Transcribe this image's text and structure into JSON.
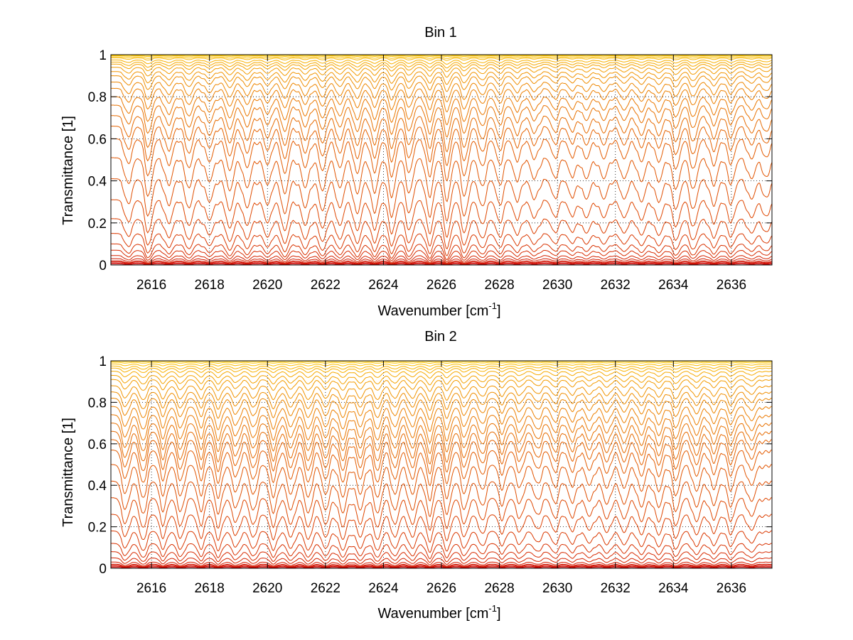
{
  "chart_data": [
    {
      "type": "line",
      "title": "Bin 1",
      "xlabel": "Wavenumber [cm",
      "xlabel_sup": "-1",
      "xlabel_end": "]",
      "ylabel": "Transmittance [1]",
      "xlim": [
        2614.6,
        2637.4
      ],
      "ylim": [
        0,
        1
      ],
      "xticks": [
        2616,
        2618,
        2620,
        2622,
        2624,
        2626,
        2628,
        2630,
        2632,
        2634,
        2636
      ],
      "xtick_labels": [
        "2616",
        "2618",
        "2620",
        "2622",
        "2624",
        "2626",
        "2628",
        "2630",
        "2632",
        "2634",
        "2636"
      ],
      "yticks": [
        0,
        0.2,
        0.4,
        0.6,
        0.8,
        1
      ],
      "ytick_labels": [
        "0",
        "0.2",
        "0.4",
        "0.6",
        "0.8",
        "1"
      ],
      "grid": true,
      "series_count": 30,
      "baseline_levels": [
        0.005,
        0.01,
        0.015,
        0.02,
        0.03,
        0.045,
        0.07,
        0.1,
        0.15,
        0.22,
        0.31,
        0.41,
        0.51,
        0.6,
        0.66,
        0.71,
        0.76,
        0.8,
        0.84,
        0.87,
        0.9,
        0.92,
        0.94,
        0.955,
        0.965,
        0.975,
        0.985,
        0.99,
        0.995,
        0.998
      ],
      "absorption_lines": [
        2615.2,
        2615.9,
        2616.6,
        2617.3,
        2618.0,
        2618.7,
        2619.3,
        2620.0,
        2620.6,
        2621.3,
        2621.9,
        2622.5,
        2623.1,
        2623.7,
        2624.3,
        2624.9,
        2625.6,
        2626.2,
        2626.8,
        2627.4,
        2628.0,
        2628.6,
        2629.2,
        2629.9,
        2630.5,
        2631.0,
        2631.6,
        2632.3,
        2632.9,
        2633.5,
        2634.1,
        2634.7,
        2635.4,
        2636.0,
        2636.7,
        2637.2
      ],
      "line_depths": [
        0.4,
        0.6,
        0.45,
        0.5,
        0.4,
        0.55,
        0.5,
        0.45,
        0.6,
        0.5,
        0.55,
        0.5,
        0.6,
        0.55,
        0.6,
        0.55,
        0.6,
        0.65,
        0.6,
        0.45,
        0.4,
        0.35,
        0.35,
        0.3,
        0.3,
        0.35,
        0.35,
        0.35,
        0.4,
        0.4,
        0.5,
        0.5,
        0.45,
        0.4,
        0.35,
        0.3
      ],
      "color_low": "#cc0000",
      "color_high": "#ffcc00"
    },
    {
      "type": "line",
      "title": "Bin 2",
      "xlabel": "Wavenumber [cm",
      "xlabel_sup": "-1",
      "xlabel_end": "]",
      "ylabel": "Transmittance [1]",
      "xlim": [
        2614.6,
        2637.4
      ],
      "ylim": [
        0,
        1
      ],
      "xticks": [
        2616,
        2618,
        2620,
        2622,
        2624,
        2626,
        2628,
        2630,
        2632,
        2634,
        2636
      ],
      "xtick_labels": [
        "2616",
        "2618",
        "2620",
        "2622",
        "2624",
        "2626",
        "2628",
        "2630",
        "2632",
        "2634",
        "2636"
      ],
      "yticks": [
        0,
        0.2,
        0.4,
        0.6,
        0.8,
        1
      ],
      "ytick_labels": [
        "0",
        "0.2",
        "0.4",
        "0.6",
        "0.8",
        "1"
      ],
      "grid": true,
      "series_count": 30,
      "baseline_levels": [
        0.005,
        0.01,
        0.015,
        0.02,
        0.03,
        0.05,
        0.08,
        0.12,
        0.18,
        0.26,
        0.34,
        0.42,
        0.5,
        0.57,
        0.62,
        0.66,
        0.7,
        0.74,
        0.78,
        0.82,
        0.85,
        0.88,
        0.91,
        0.93,
        0.95,
        0.965,
        0.975,
        0.985,
        0.993,
        0.998
      ],
      "absorption_lines": [
        2615.1,
        2615.7,
        2616.4,
        2617.0,
        2617.7,
        2618.3,
        2618.9,
        2619.5,
        2620.2,
        2620.8,
        2621.4,
        2622.0,
        2622.6,
        2623.2,
        2623.8,
        2624.4,
        2625.0,
        2625.6,
        2626.2,
        2626.8,
        2627.4,
        2628.1,
        2628.7,
        2629.3,
        2629.9,
        2630.5,
        2631.1,
        2631.7,
        2632.3,
        2632.9,
        2633.5,
        2634.1,
        2634.8,
        2635.4,
        2636.0,
        2636.7
      ],
      "line_depths": [
        0.45,
        0.55,
        0.45,
        0.5,
        0.45,
        0.5,
        0.45,
        0.5,
        0.5,
        0.5,
        0.55,
        0.5,
        0.55,
        0.5,
        0.55,
        0.5,
        0.5,
        0.55,
        0.5,
        0.45,
        0.4,
        0.35,
        0.35,
        0.3,
        0.35,
        0.35,
        0.35,
        0.4,
        0.4,
        0.45,
        0.45,
        0.5,
        0.45,
        0.4,
        0.4,
        0.35
      ],
      "color_low": "#cc0000",
      "color_high": "#ffcc00"
    }
  ]
}
